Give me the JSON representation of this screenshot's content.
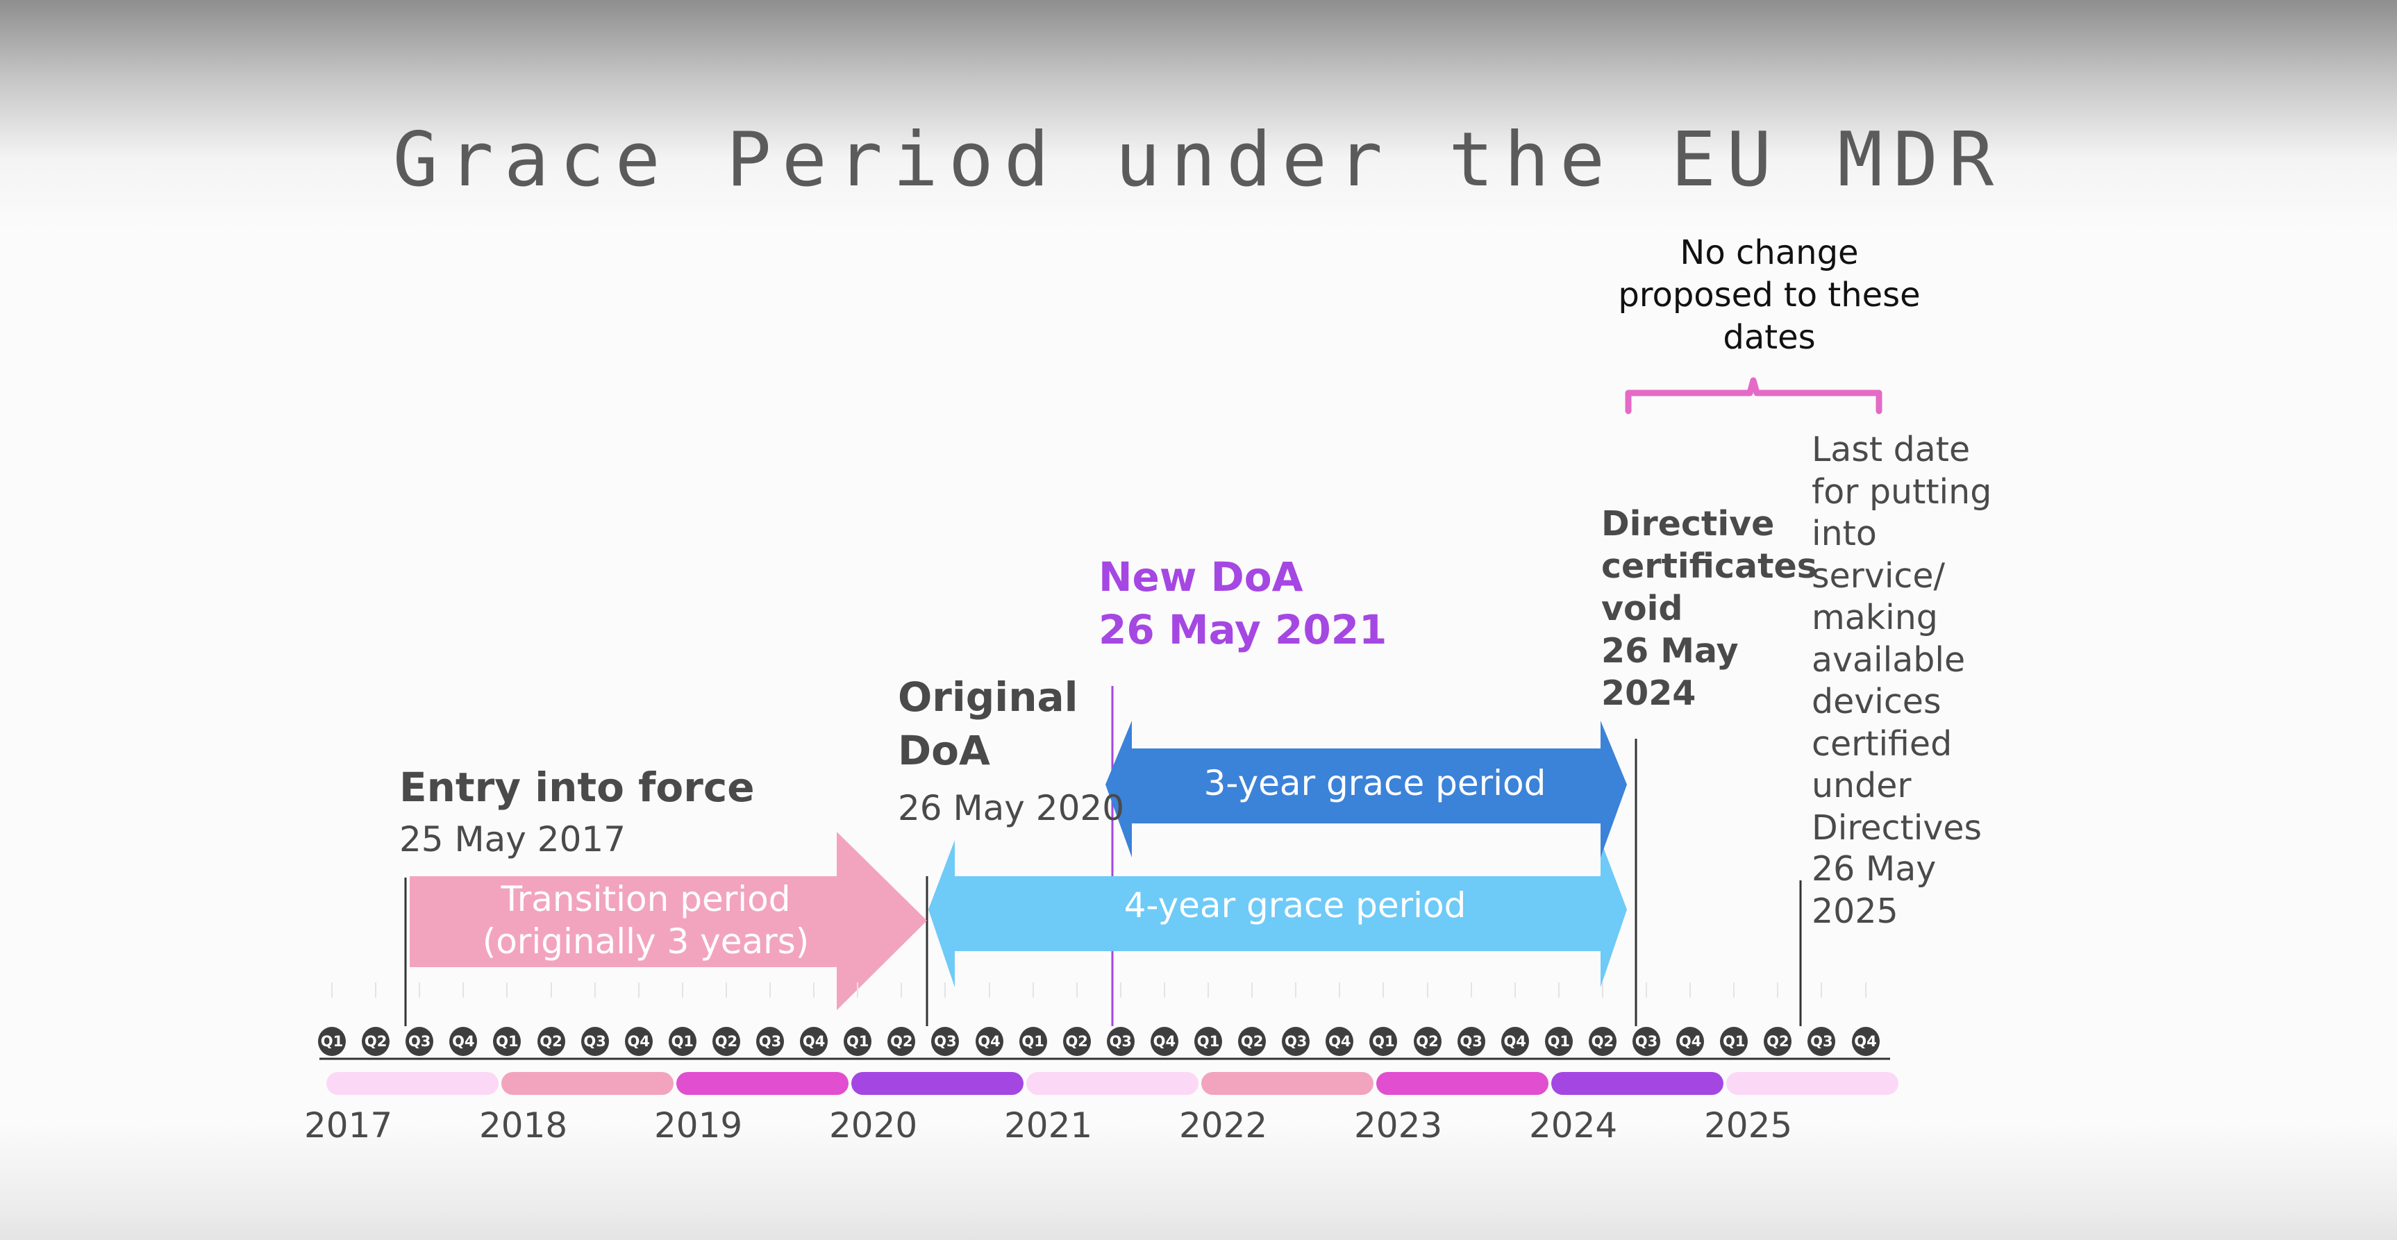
{
  "title": "Grace Period under the EU MDR",
  "note": "No change proposed to these dates",
  "milestones": {
    "entry_into_force": {
      "title": "Entry into force",
      "date": "25 May 2017"
    },
    "original_doa": {
      "title": "Original DoA",
      "date": "26 May 2020"
    },
    "new_doa": {
      "title": "New DoA",
      "date": "26 May 2021"
    },
    "directive_certs_void": {
      "title": "Directive certificates void",
      "date": "26 May 2024"
    },
    "last_date": {
      "title": "Last date for putting into service/ making available devices certified under Directives",
      "date": "26 May 2025"
    }
  },
  "periods": {
    "transition": "Transition period (originally 3 years)",
    "grace_3yr": "3-year grace period",
    "grace_4yr": "4-year grace period"
  },
  "quarters": [
    "Q1",
    "Q2",
    "Q3",
    "Q4"
  ],
  "years": [
    "2017",
    "2018",
    "2019",
    "2020",
    "2021",
    "2022",
    "2023",
    "2024",
    "2025"
  ],
  "colors": {
    "transition": "#f2a4bf",
    "grace_3yr": "#3b82d9",
    "grace_4yr": "#6ecaf7",
    "new_doa": "#a547e2",
    "bracket": "#e46ac6",
    "year_bars": [
      "#fbd9f6",
      "#f2a4bf",
      "#e24ed0",
      "#a447e2",
      "#fbd9f6",
      "#f2a4bf",
      "#e24ed0",
      "#a447e2",
      "#fbd9f6"
    ]
  }
}
